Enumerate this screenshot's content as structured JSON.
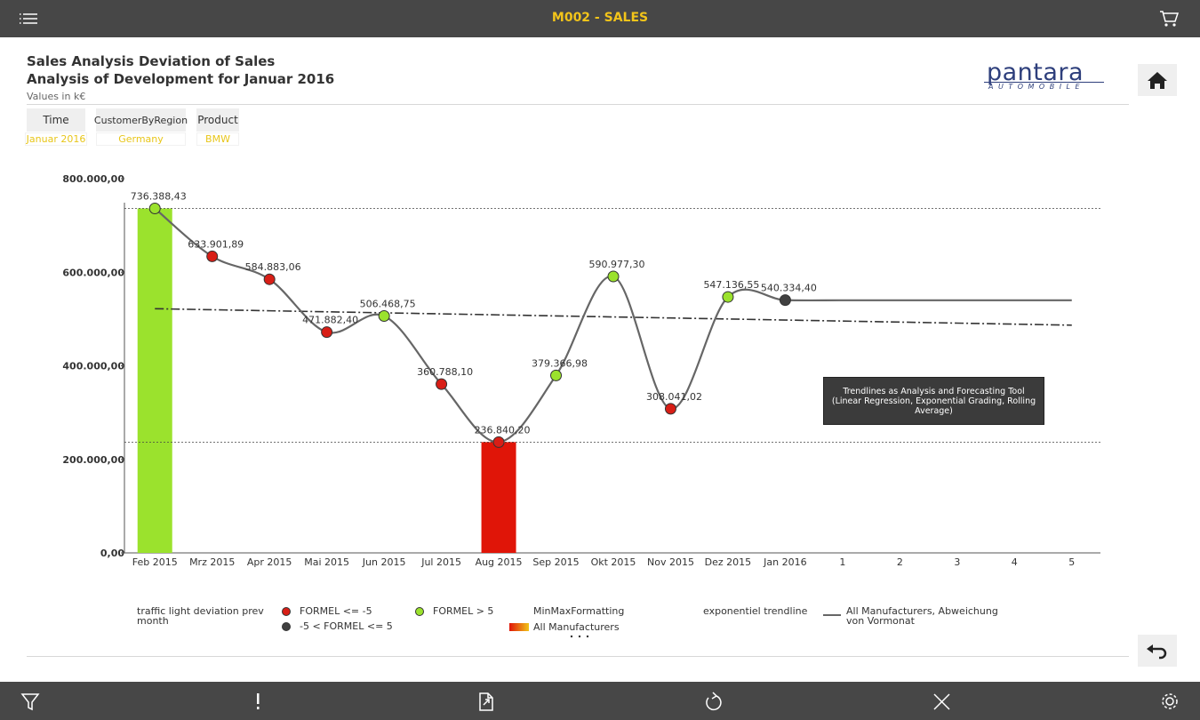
{
  "app_bar": {
    "title": "M002 - SALES"
  },
  "report": {
    "title_line1": "Sales Analysis Deviation of Sales",
    "title_line2": "Analysis of Development for Januar 2016",
    "subtitle": "Values in k€"
  },
  "logo": {
    "name": "pantara",
    "tagline": "AUTOMOBILE"
  },
  "filters": [
    {
      "label": "Time",
      "value": "Januar 2016"
    },
    {
      "label": "CustomerByRegion",
      "value": "Germany"
    },
    {
      "label": "Product",
      "value": "BMW"
    }
  ],
  "chart_data": {
    "type": "line",
    "categories": [
      "Feb 2015",
      "Mrz 2015",
      "Apr 2015",
      "Mai 2015",
      "Jun 2015",
      "Jul 2015",
      "Aug 2015",
      "Sep 2015",
      "Okt 2015",
      "Nov 2015",
      "Dez 2015",
      "Jan 2016",
      "1",
      "2",
      "3",
      "4",
      "5"
    ],
    "series": [
      {
        "name": "All Manufacturers, Abweichung von Vormonat",
        "color": "#666666",
        "values": [
          736388.43,
          633901.89,
          584883.06,
          471882.4,
          506468.75,
          360788.1,
          236840.2,
          379366.98,
          590977.3,
          308041.02,
          547136.55,
          540334.4,
          540000,
          540000,
          540000,
          540000,
          540000
        ],
        "value_labels": [
          "736.388,43",
          "633.901,89",
          "584.883,06",
          "471.882,40",
          "506.468,75",
          "360.788,10",
          "236.840,20",
          "379.366,98",
          "590.977,30",
          "308.041,02",
          "547.136,55",
          "540.334,40",
          null,
          null,
          null,
          null,
          null
        ],
        "point_class": [
          2,
          0,
          0,
          0,
          2,
          0,
          0,
          2,
          2,
          0,
          2,
          1,
          null,
          null,
          null,
          null,
          null
        ]
      }
    ],
    "traffic_light": {
      "title": "traffic light deviation prev month",
      "classes": [
        {
          "label": "FORMEL <= -5",
          "color": "#d81e16"
        },
        {
          "label": "-5 < FORMEL <= 5",
          "color": "#404040"
        },
        {
          "label": "FORMEL > 5",
          "color": "#9be22d"
        }
      ]
    },
    "minmax": {
      "title": "MinMaxFormatting",
      "name": "All Manufacturers",
      "values": [
        736388.43,
        null,
        null,
        null,
        null,
        null,
        236840.2,
        null,
        null,
        null,
        null,
        null,
        null,
        null,
        null,
        null,
        null
      ],
      "colors": [
        "#9be22d",
        null,
        null,
        null,
        null,
        null,
        "#e01508",
        null,
        null,
        null,
        null,
        null,
        null,
        null,
        null,
        null,
        null
      ]
    },
    "trendline": {
      "title": "exponentiel trendline",
      "color": "#333333",
      "values": [
        522000,
        519800,
        517600,
        515400,
        513200,
        511000,
        508800,
        506600,
        504400,
        502200,
        500000,
        497800,
        495600,
        493400,
        491200,
        489000,
        486800
      ]
    },
    "annotation": "Trendlines as Analysis and Forecasting Tool (Linear Regression, Exponential Grading, Rolling Average)",
    "ylim": [
      0,
      800000
    ],
    "yticks": [
      {
        "value": 0,
        "label": "0,00"
      },
      {
        "value": 200000,
        "label": "200.000,00"
      },
      {
        "value": 400000,
        "label": "400.000,00"
      },
      {
        "value": 600000,
        "label": "600.000,00"
      },
      {
        "value": 800000,
        "label": "800.000,00"
      }
    ],
    "grid": false
  }
}
